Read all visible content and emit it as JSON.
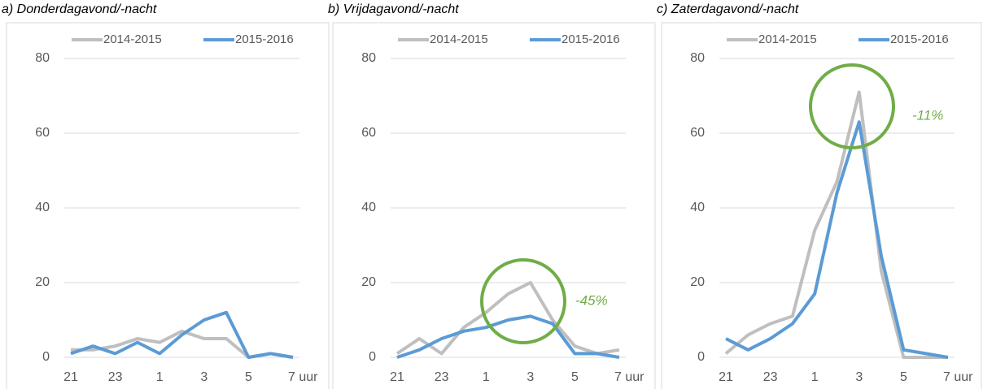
{
  "chart_data": [
    {
      "type": "line",
      "title": "a) Donderdagavond/-nacht",
      "categories": [
        "21",
        null,
        "23",
        null,
        "1",
        null,
        "3",
        null,
        "5",
        null,
        "7 uur"
      ],
      "series": [
        {
          "name": "2014-2015",
          "color": "#bfbfbf",
          "values": [
            2,
            2,
            3,
            5,
            4,
            7,
            5,
            5,
            0,
            1,
            0
          ]
        },
        {
          "name": "2015-2016",
          "color": "#5b9bd5",
          "values": [
            1,
            3,
            1,
            4,
            1,
            6,
            10,
            12,
            0,
            1,
            0
          ]
        }
      ],
      "ylim": [
        0,
        80
      ],
      "yticks": [
        0,
        20,
        40,
        60,
        80
      ],
      "legend": "top"
    },
    {
      "type": "line",
      "title": "b) Vrijdagavond/-nacht",
      "categories": [
        "21",
        null,
        "23",
        null,
        "1",
        null,
        "3",
        null,
        "5",
        null,
        "7 uur"
      ],
      "series": [
        {
          "name": "2014-2015",
          "color": "#bfbfbf",
          "values": [
            1,
            5,
            1,
            8,
            12,
            17,
            20,
            10,
            3,
            1,
            2
          ]
        },
        {
          "name": "2015-2016",
          "color": "#5b9bd5",
          "values": [
            0,
            2,
            5,
            7,
            8,
            10,
            11,
            9,
            1,
            1,
            0
          ]
        }
      ],
      "ylim": [
        0,
        80
      ],
      "yticks": [
        0,
        20,
        40,
        60,
        80
      ],
      "legend": "top",
      "annotation": "-45%"
    },
    {
      "type": "line",
      "title": "c) Zaterdagavond/-nacht",
      "categories": [
        "21",
        null,
        "23",
        null,
        "1",
        null,
        "3",
        null,
        "5",
        null,
        "7 uur"
      ],
      "series": [
        {
          "name": "2014-2015",
          "color": "#bfbfbf",
          "values": [
            1,
            6,
            9,
            11,
            34,
            47,
            71,
            23,
            0,
            0,
            0
          ]
        },
        {
          "name": "2015-2016",
          "color": "#5b9bd5",
          "values": [
            5,
            2,
            5,
            9,
            17,
            44,
            63,
            27,
            2,
            1,
            0
          ]
        }
      ],
      "ylim": [
        0,
        80
      ],
      "yticks": [
        0,
        20,
        40,
        60,
        80
      ],
      "legend": "top",
      "annotation": "-11%"
    }
  ]
}
